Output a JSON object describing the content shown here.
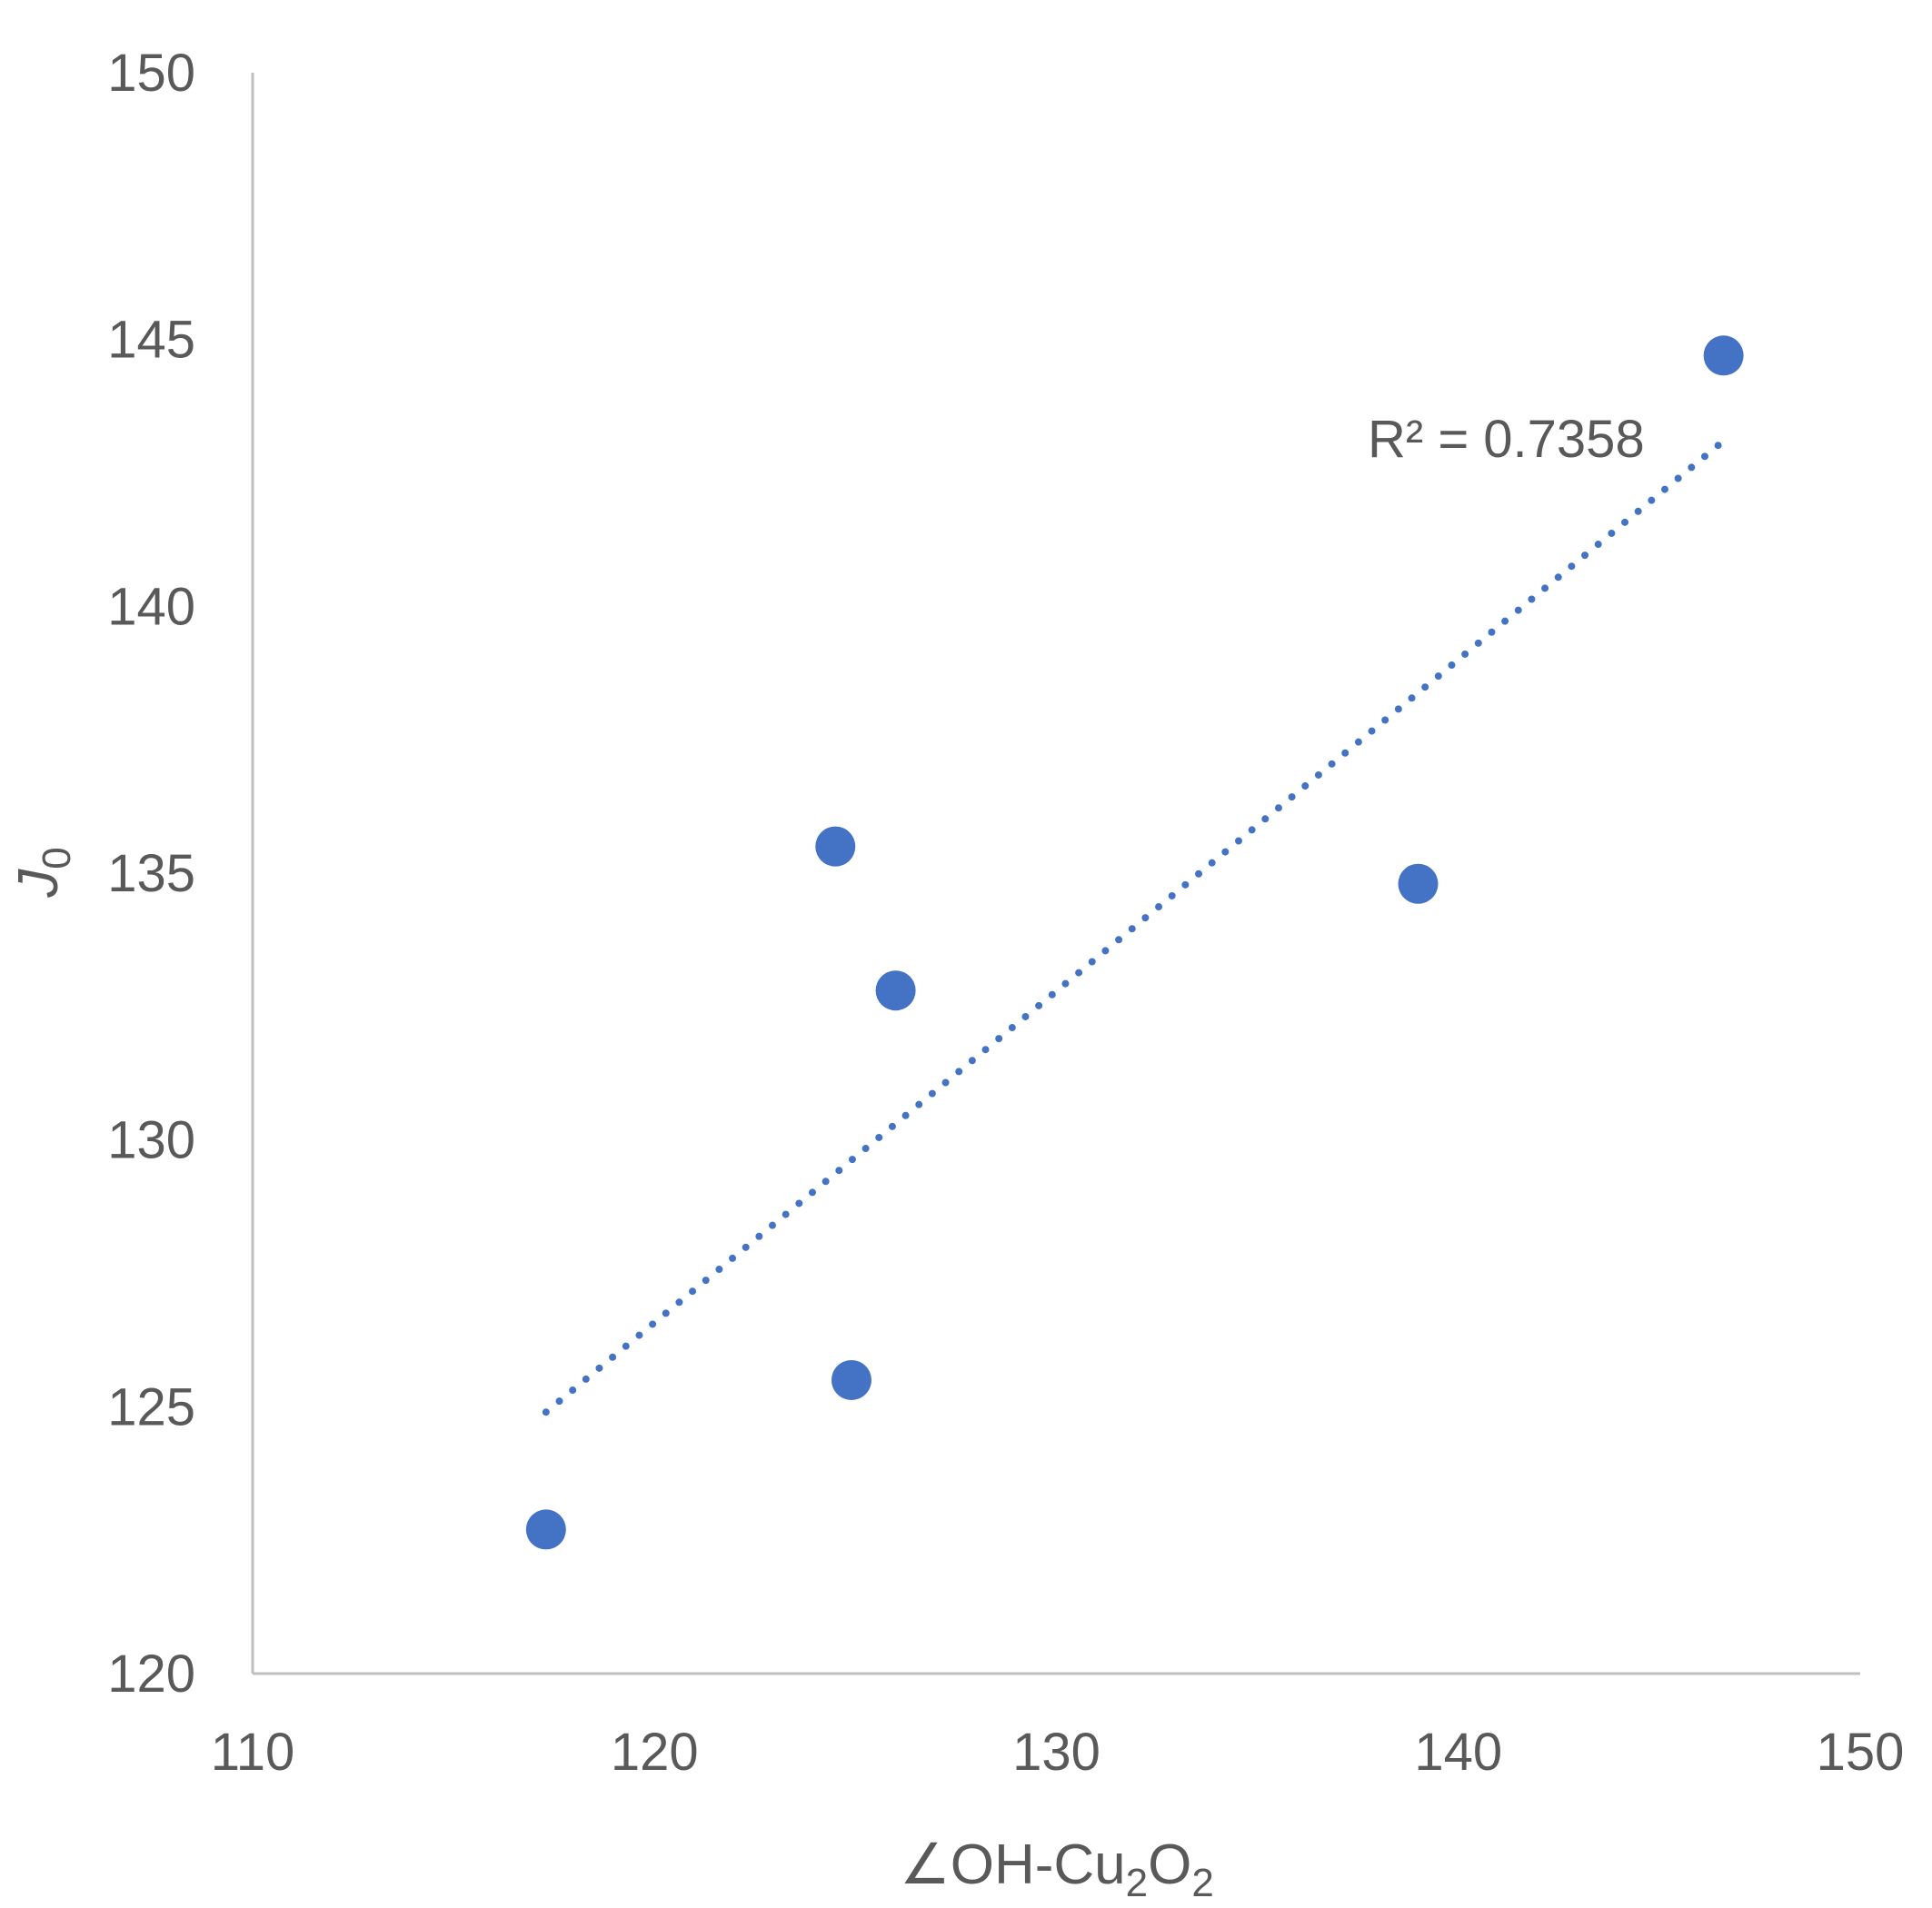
{
  "chart_data": {
    "type": "scatter",
    "title": "",
    "xlabel": "∠OH-Cu",
    "xlabel_sub1": "2",
    "xlabel_mid": "O",
    "xlabel_sub2": "2",
    "ylabel": "J",
    "ylabel_sub": "0",
    "xlim": [
      110,
      150
    ],
    "ylim": [
      120,
      150
    ],
    "xticks": [
      110,
      120,
      130,
      140,
      150
    ],
    "yticks": [
      120,
      125,
      130,
      135,
      140,
      145,
      150
    ],
    "grid": false,
    "points": [
      {
        "x": 117.3,
        "y": 122.7
      },
      {
        "x": 124.5,
        "y": 135.5
      },
      {
        "x": 124.9,
        "y": 125.5
      },
      {
        "x": 126.0,
        "y": 132.8
      },
      {
        "x": 139.0,
        "y": 134.8
      },
      {
        "x": 146.6,
        "y": 144.7
      }
    ],
    "trendline": {
      "type": "linear",
      "style": "dotted",
      "start": {
        "x": 117.3,
        "y": 124.9
      },
      "end": {
        "x": 146.6,
        "y": 143.1
      },
      "label": "R² = 0.7358"
    },
    "colors": {
      "point": "#4472C4",
      "trendline": "#4472C4",
      "axis": "#BFBFBF",
      "text": "#595959"
    }
  }
}
